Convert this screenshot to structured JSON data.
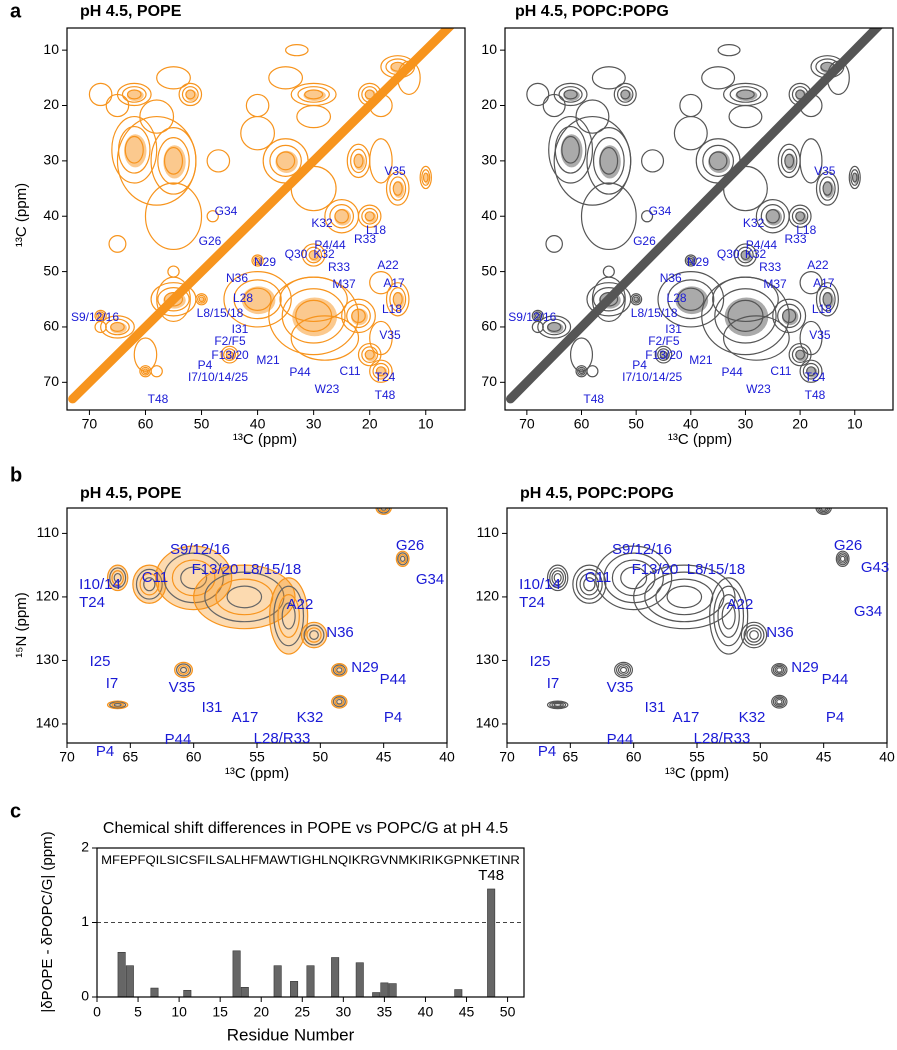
{
  "chart_data": [
    {
      "type": "contour",
      "panel_label": "a",
      "title": "pH 4.5, POPE",
      "xlabel": "¹³C (ppm)",
      "ylabel": "¹³C (ppm)",
      "color": "#f7941d",
      "xlim": [
        74,
        3
      ],
      "xticks": [
        70,
        60,
        50,
        40,
        30,
        20,
        10
      ],
      "ylim": [
        6,
        75
      ],
      "yticks": [
        10,
        20,
        30,
        40,
        50,
        60,
        70
      ],
      "annotations": [
        "V35",
        "G34",
        "K32",
        "R33",
        "L18",
        "G26",
        "P4/44",
        "N29",
        "Q30",
        "K32",
        "R33",
        "A22",
        "A17",
        "M37",
        "N36",
        "L28",
        "L18",
        "L8/15/18",
        "I31",
        "V35",
        "S9/12/16",
        "F2/F5",
        "F13/20",
        "M21",
        "P4",
        "I7/10/14/25",
        "P44",
        "C11",
        "T24",
        "W23",
        "T48",
        "T48"
      ]
    },
    {
      "type": "contour",
      "title": "pH 4.5, POPC:POPG",
      "xlabel": "¹³C (ppm)",
      "color": "#555555",
      "xlim": [
        74,
        3
      ],
      "xticks": [
        70,
        60,
        50,
        40,
        30,
        20,
        10
      ],
      "ylim": [
        6,
        75
      ],
      "yticks": [
        10,
        20,
        30,
        40,
        50,
        60,
        70
      ],
      "annotations": [
        "V35",
        "G34",
        "K32",
        "R33",
        "L18",
        "G26",
        "P4/44",
        "N29",
        "Q30",
        "K32",
        "R33",
        "A22",
        "A17",
        "M37",
        "N36",
        "L28",
        "L18",
        "L8/15/18",
        "I31",
        "V35",
        "S9/12/16",
        "F2/F5",
        "F13/20",
        "M21",
        "P4",
        "I7/10/14/25",
        "P44",
        "C11",
        "T24",
        "W23",
        "T48",
        "T48"
      ]
    },
    {
      "type": "contour",
      "panel_label": "b",
      "title": "pH 4.5, POPE",
      "xlabel": "¹³C (ppm)",
      "ylabel": "¹⁵N (ppm)",
      "color": "#f7941d",
      "xlim": [
        70,
        40
      ],
      "xticks": [
        70,
        65,
        60,
        55,
        50,
        45,
        40
      ],
      "ylim": [
        106,
        143
      ],
      "yticks": [
        110,
        120,
        130,
        140
      ],
      "annotations": [
        "I10/14",
        "T24",
        "C11",
        "S9/12/16",
        "F13/20",
        "L8/15/18",
        "A22",
        "N36",
        "N29",
        "I25",
        "I7",
        "V35",
        "I31",
        "A17",
        "K32",
        "L28/R33",
        "P44",
        "P4",
        "P44",
        "P4",
        "G26",
        "G34"
      ]
    },
    {
      "type": "contour",
      "title": "pH 4.5, POPC:POPG",
      "xlabel": "¹³C (ppm)",
      "color": "#555555",
      "xlim": [
        70,
        40
      ],
      "xticks": [
        70,
        65,
        60,
        55,
        50,
        45,
        40
      ],
      "ylim": [
        106,
        143
      ],
      "yticks": [
        110,
        120,
        130,
        140
      ],
      "annotations": [
        "I10/14",
        "T24",
        "C11",
        "S9/12/16",
        "F13/20",
        "L8/15/18",
        "A22",
        "N36",
        "N29",
        "I25",
        "I7",
        "V35",
        "I31",
        "A17",
        "K32",
        "L28/R33",
        "P44",
        "P4",
        "P44",
        "P4",
        "G26",
        "G43",
        "G34"
      ]
    },
    {
      "type": "bar",
      "panel_label": "c",
      "title": "Chemical shift differences in POPE vs POPC/G at pH 4.5",
      "sequence": "MFEPFQILSICSFILSALHFMAWTIGHLNQIKRGVNMKIRIKGPNKETINR",
      "xlabel": "Residue Number",
      "ylabel": "|δPOPE - δPOPC/G| (ppm)",
      "color": "#666666",
      "x": [
        3,
        4,
        7,
        11,
        17,
        18,
        22,
        24,
        26,
        29,
        32,
        34,
        35,
        36,
        44,
        48
      ],
      "values": [
        0.6,
        0.42,
        0.12,
        0.09,
        0.62,
        0.13,
        0.42,
        0.21,
        0.42,
        0.53,
        0.46,
        0.06,
        0.19,
        0.18,
        0.1,
        1.45
      ],
      "annotation": "T48",
      "reference_line": 1,
      "xlim": [
        0,
        52
      ],
      "xticks": [
        0,
        5,
        10,
        15,
        20,
        25,
        30,
        35,
        40,
        45,
        50
      ],
      "ylim": [
        0,
        2
      ],
      "yticks": [
        0,
        1,
        2
      ]
    }
  ]
}
